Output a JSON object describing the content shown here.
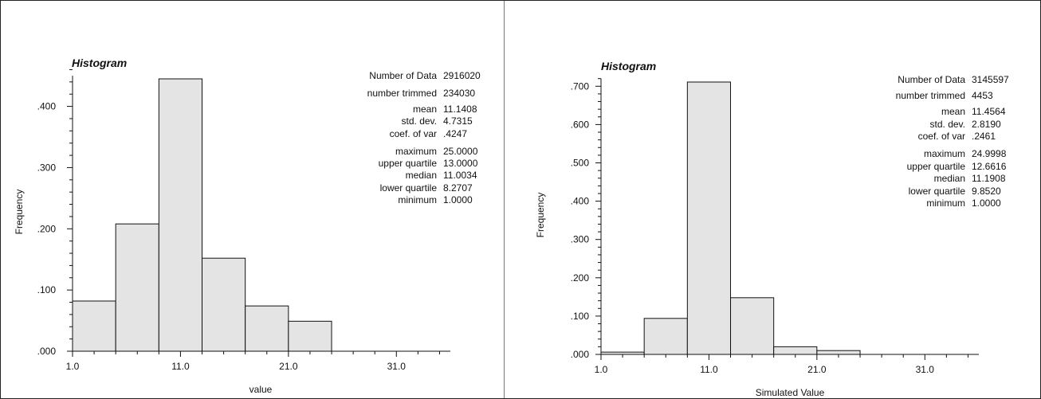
{
  "chart_data": [
    {
      "type": "bar",
      "title": "Histogram",
      "xlabel": "value",
      "ylabel": "Frequency",
      "xlim": [
        1.0,
        36.0
      ],
      "ylim": [
        0.0,
        0.45
      ],
      "x_ticks": [
        "1.0",
        "11.0",
        "21.0",
        "31.0"
      ],
      "y_ticks": [
        ".000",
        ".100",
        ".200",
        ".300",
        ".400"
      ],
      "bins": [
        {
          "start": 1.0,
          "end": 5.0,
          "value": 0.082
        },
        {
          "start": 5.0,
          "end": 9.0,
          "value": 0.208
        },
        {
          "start": 9.0,
          "end": 13.0,
          "value": 0.445
        },
        {
          "start": 13.0,
          "end": 17.0,
          "value": 0.152
        },
        {
          "start": 17.0,
          "end": 21.0,
          "value": 0.074
        },
        {
          "start": 21.0,
          "end": 25.0,
          "value": 0.049
        }
      ],
      "stats": [
        {
          "label": "Number of Data",
          "value": "2916020"
        },
        {
          "label": "number trimmed",
          "value": "234030"
        },
        {
          "label": "mean",
          "value": "11.1408"
        },
        {
          "label": "std. dev.",
          "value": "4.7315"
        },
        {
          "label": "coef. of var",
          "value": ".4247"
        },
        {
          "label": "maximum",
          "value": "25.0000"
        },
        {
          "label": "upper quartile",
          "value": "13.0000"
        },
        {
          "label": "median",
          "value": "11.0034"
        },
        {
          "label": "lower quartile",
          "value": "8.2707"
        },
        {
          "label": "minimum",
          "value": "1.0000"
        }
      ]
    },
    {
      "type": "bar",
      "title": "Histogram",
      "xlabel": "Simulated Value",
      "ylabel": "Frequency",
      "xlim": [
        1.0,
        36.0
      ],
      "ylim": [
        0.0,
        0.72
      ],
      "x_ticks": [
        "1.0",
        "11.0",
        "21.0",
        "31.0"
      ],
      "y_ticks": [
        ".000",
        ".100",
        ".200",
        ".300",
        ".400",
        ".500",
        ".600",
        ".700"
      ],
      "bins": [
        {
          "start": 1.0,
          "end": 5.0,
          "value": 0.006
        },
        {
          "start": 5.0,
          "end": 9.0,
          "value": 0.094
        },
        {
          "start": 9.0,
          "end": 13.0,
          "value": 0.711
        },
        {
          "start": 13.0,
          "end": 17.0,
          "value": 0.148
        },
        {
          "start": 17.0,
          "end": 21.0,
          "value": 0.02
        },
        {
          "start": 21.0,
          "end": 25.0,
          "value": 0.01
        }
      ],
      "stats": [
        {
          "label": "Number of Data",
          "value": "3145597"
        },
        {
          "label": "number trimmed",
          "value": "4453"
        },
        {
          "label": "mean",
          "value": "11.4564"
        },
        {
          "label": "std. dev.",
          "value": "2.8190"
        },
        {
          "label": "coef. of var",
          "value": ".2461"
        },
        {
          "label": "maximum",
          "value": "24.9998"
        },
        {
          "label": "upper quartile",
          "value": "12.6616"
        },
        {
          "label": "median",
          "value": "11.1908"
        },
        {
          "label": "lower quartile",
          "value": "9.8520"
        },
        {
          "label": "minimum",
          "value": "1.0000"
        }
      ]
    }
  ]
}
